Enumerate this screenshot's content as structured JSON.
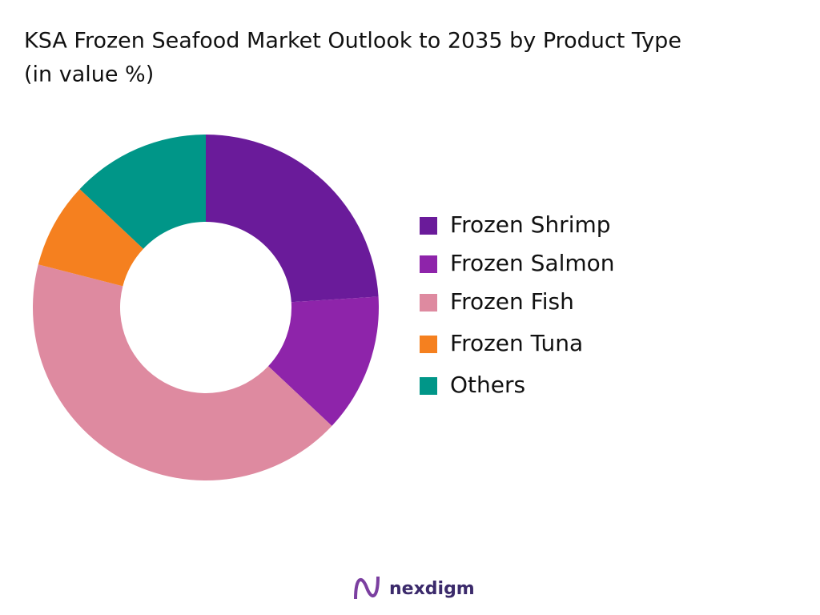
{
  "chart_data": {
    "type": "donut",
    "title": "KSA Frozen Seafood Market Outlook to 2035 by Product Type",
    "subtitle": "(in value %)",
    "categories": [
      "Frozen Shrimp",
      "Frozen Salmon",
      "Frozen Fish",
      "Frozen Tuna",
      "Others"
    ],
    "values": [
      24,
      13,
      42,
      8,
      13
    ],
    "colors": [
      "#6a1b9a",
      "#8e24aa",
      "#de8aa0",
      "#f5801f",
      "#009688"
    ],
    "legend": "right"
  },
  "logo": "nexdigm"
}
